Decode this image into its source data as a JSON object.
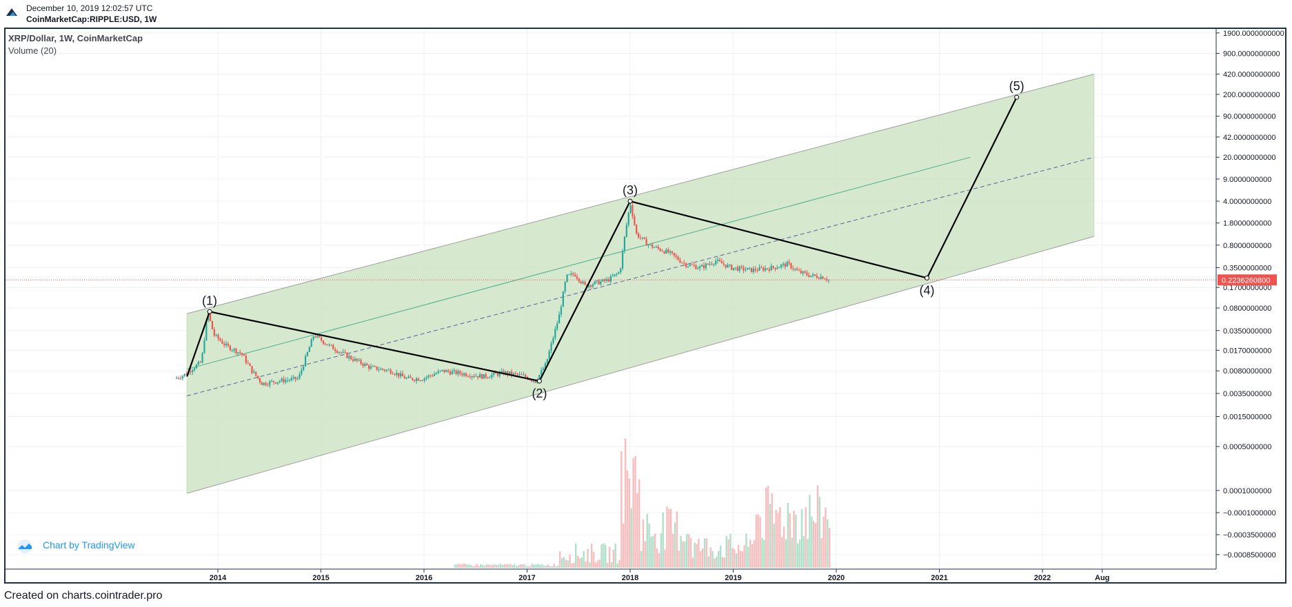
{
  "header": {
    "timestamp": "December 10, 2019 12:02:57 UTC",
    "symbol": "CoinMarketCap:RIPPLE:USD, 1W"
  },
  "legend": {
    "title": "XRP/Dollar, 1W, CoinMarketCap",
    "volume": "Volume (20)"
  },
  "brand": {
    "label": "Chart by TradingView",
    "icon": "tradingview-cloud-icon"
  },
  "footer": {
    "credit": "Created on charts.cointrader.pro"
  },
  "colors": {
    "up": "#26a69a",
    "down": "#ef5350",
    "channel_fill": "#cfe5c6",
    "price_tag": "#ef5350",
    "frame": "#1e3246",
    "brand": "#2196f3"
  },
  "chart_data": {
    "type": "candlestick",
    "x_axis": {
      "ticks": [
        "2014",
        "2015",
        "2016",
        "2017",
        "2018",
        "2019",
        "2020",
        "2021",
        "2022",
        "Aug"
      ],
      "tick_values": [
        2014.0,
        2015.0,
        2016.0,
        2017.0,
        2018.0,
        2019.0,
        2020.0,
        2021.0,
        2022.0,
        2022.58
      ]
    },
    "y_axis": {
      "scale": "log",
      "ticks": [
        {
          "label": "1900.0000000000",
          "value": 1900
        },
        {
          "label": "900.0000000000",
          "value": 900
        },
        {
          "label": "420.0000000000",
          "value": 420
        },
        {
          "label": "200.0000000000",
          "value": 200
        },
        {
          "label": "90.0000000000",
          "value": 90
        },
        {
          "label": "42.0000000000",
          "value": 42
        },
        {
          "label": "20.0000000000",
          "value": 20
        },
        {
          "label": "9.0000000000",
          "value": 9
        },
        {
          "label": "4.0000000000",
          "value": 4
        },
        {
          "label": "1.8000000000",
          "value": 1.8
        },
        {
          "label": "0.8000000000",
          "value": 0.8
        },
        {
          "label": "0.3500000000",
          "value": 0.35
        },
        {
          "label": "0.1700000000",
          "value": 0.17
        },
        {
          "label": "0.0800000000",
          "value": 0.08
        },
        {
          "label": "0.0350000000",
          "value": 0.035
        },
        {
          "label": "0.0170000000",
          "value": 0.017
        },
        {
          "label": "0.0080000000",
          "value": 0.008
        },
        {
          "label": "0.0035000000",
          "value": 0.0035
        },
        {
          "label": "0.0015000000",
          "value": 0.0015
        },
        {
          "label": "0.0005000000",
          "value": 0.0005
        },
        {
          "label": "0.0001000000",
          "value": 0.0001
        },
        {
          "label": "−0.0001000000",
          "value": -0.0001
        },
        {
          "label": "−0.0003500000",
          "value": -0.00035
        },
        {
          "label": "−0.0008500000",
          "value": -0.00085
        }
      ]
    },
    "last_price": {
      "label": "0.2236260800",
      "value": 0.22362608
    },
    "price_path": [
      [
        2013.6,
        0.006
      ],
      [
        2013.7,
        0.007
      ],
      [
        2013.78,
        0.009
      ],
      [
        2013.86,
        0.011
      ],
      [
        2013.92,
        0.07
      ],
      [
        2013.98,
        0.03
      ],
      [
        2014.1,
        0.02
      ],
      [
        2014.25,
        0.015
      ],
      [
        2014.35,
        0.008
      ],
      [
        2014.45,
        0.005
      ],
      [
        2014.6,
        0.0055
      ],
      [
        2014.8,
        0.006
      ],
      [
        2014.95,
        0.03
      ],
      [
        2015.1,
        0.02
      ],
      [
        2015.3,
        0.013
      ],
      [
        2015.5,
        0.009
      ],
      [
        2015.7,
        0.008
      ],
      [
        2015.85,
        0.006
      ],
      [
        2016.0,
        0.006
      ],
      [
        2016.2,
        0.008
      ],
      [
        2016.45,
        0.007
      ],
      [
        2016.6,
        0.0065
      ],
      [
        2016.8,
        0.0075
      ],
      [
        2017.0,
        0.0065
      ],
      [
        2017.1,
        0.0055
      ],
      [
        2017.2,
        0.01
      ],
      [
        2017.28,
        0.03
      ],
      [
        2017.33,
        0.06
      ],
      [
        2017.4,
        0.25
      ],
      [
        2017.48,
        0.28
      ],
      [
        2017.58,
        0.18
      ],
      [
        2017.68,
        0.2
      ],
      [
        2017.8,
        0.22
      ],
      [
        2017.92,
        0.3
      ],
      [
        2017.97,
        1.2
      ],
      [
        2018.02,
        3.8
      ],
      [
        2018.08,
        1.2
      ],
      [
        2018.2,
        0.8
      ],
      [
        2018.4,
        0.6
      ],
      [
        2018.55,
        0.4
      ],
      [
        2018.7,
        0.35
      ],
      [
        2018.85,
        0.45
      ],
      [
        2019.0,
        0.35
      ],
      [
        2019.2,
        0.32
      ],
      [
        2019.4,
        0.35
      ],
      [
        2019.55,
        0.4
      ],
      [
        2019.65,
        0.3
      ],
      [
        2019.78,
        0.26
      ],
      [
        2019.9,
        0.25
      ],
      [
        2019.94,
        0.2236
      ]
    ],
    "volume_profile": {
      "series": "Volume (20)",
      "peak_date": 2018.0
    },
    "annotations": {
      "channel": {
        "upper": [
          [
            2013.7,
            0.065
          ],
          [
            2022.5,
            420
          ]
        ],
        "lower": [
          [
            2013.7,
            9e-05
          ],
          [
            2022.5,
            1.1
          ]
        ],
        "mid_solid": [
          [
            2013.7,
            0.0085
          ],
          [
            2021.3,
            20
          ]
        ],
        "mid_dashed": [
          [
            2013.7,
            0.0032
          ],
          [
            2022.5,
            20
          ]
        ]
      },
      "waves": [
        {
          "label": "(1)",
          "x": 2013.92,
          "y": 0.07,
          "pos": "above"
        },
        {
          "label": "(2)",
          "x": 2017.12,
          "y": 0.0055,
          "pos": "below"
        },
        {
          "label": "(3)",
          "x": 2018.0,
          "y": 4.0,
          "pos": "above"
        },
        {
          "label": "(4)",
          "x": 2020.88,
          "y": 0.24,
          "pos": "below"
        },
        {
          "label": "(5)",
          "x": 2021.75,
          "y": 180,
          "pos": "above"
        }
      ],
      "wave_path_start": [
        2013.7,
        0.0065
      ]
    }
  }
}
